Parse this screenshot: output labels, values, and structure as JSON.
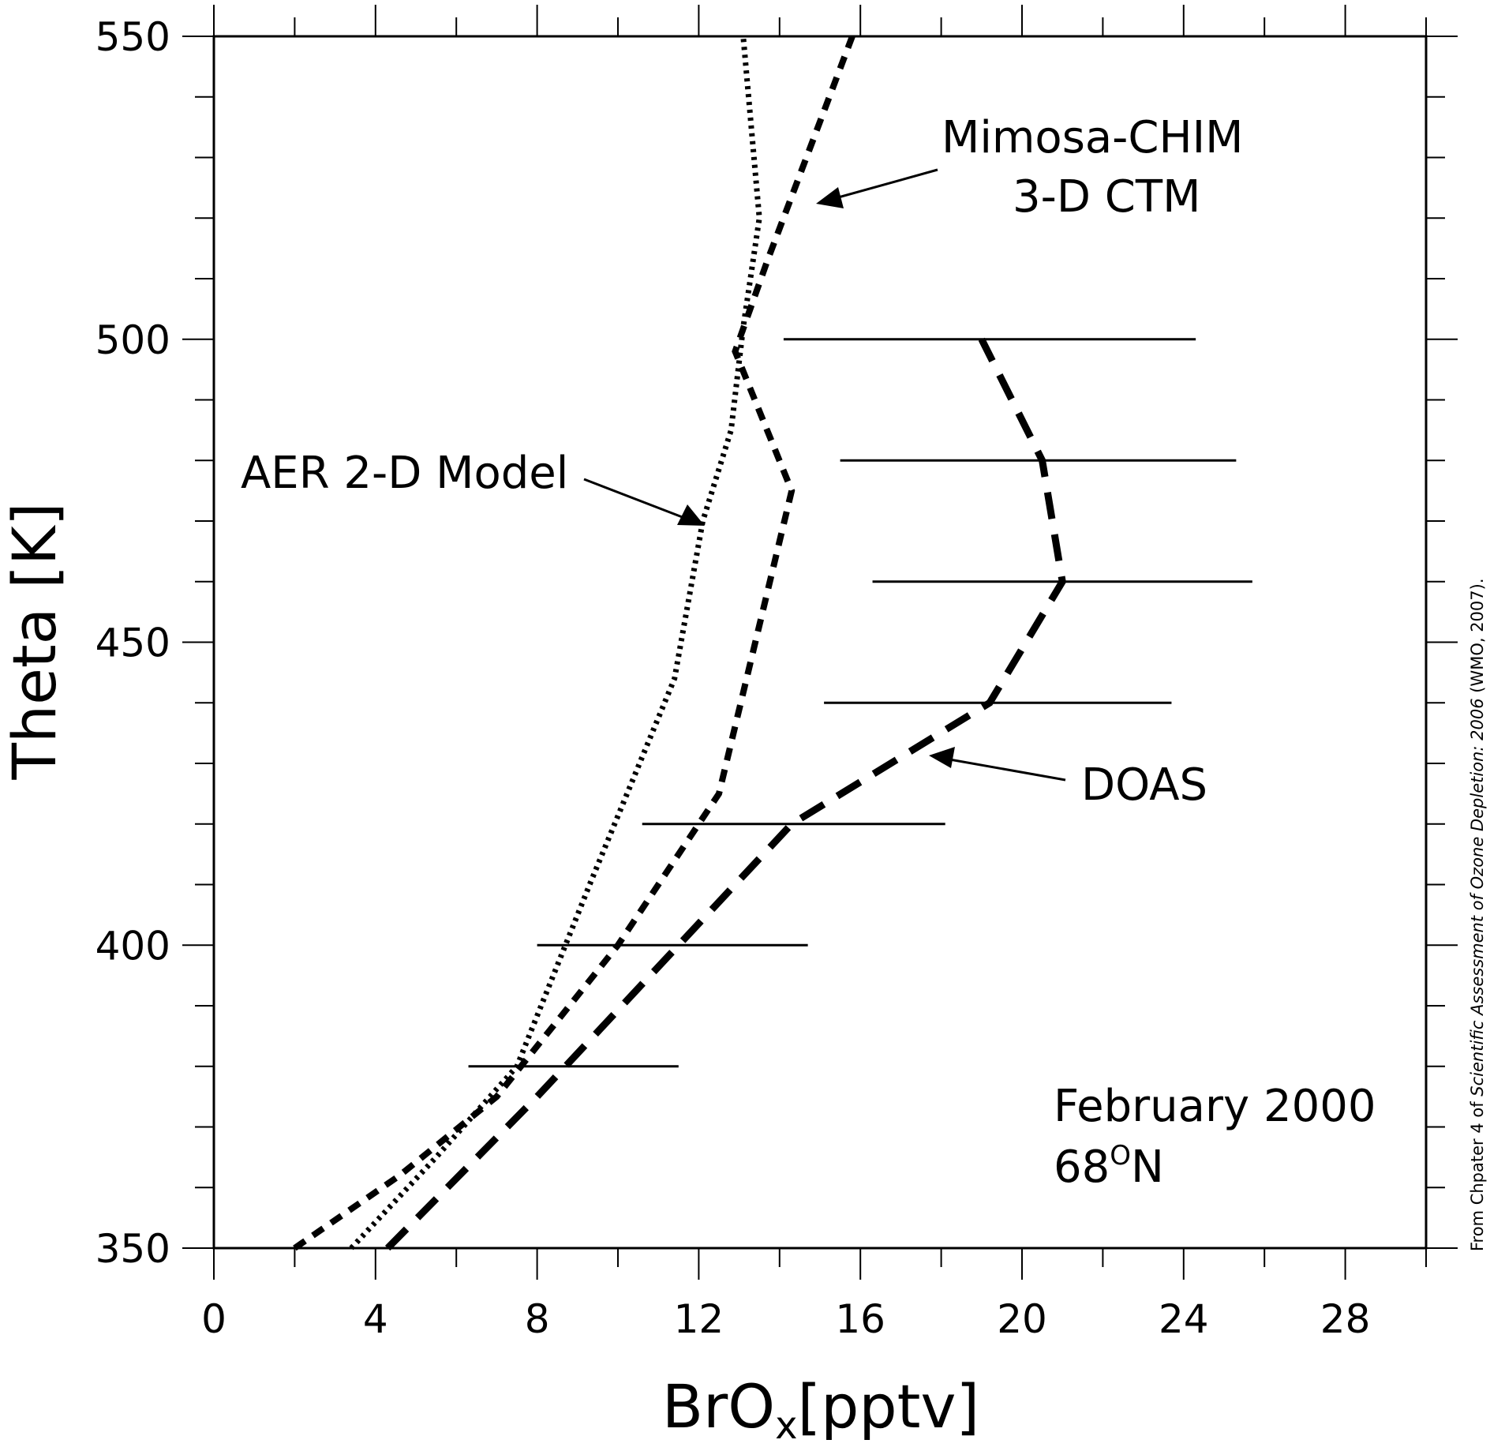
{
  "chart_data": {
    "type": "line",
    "xlabel_main": "BrO",
    "xlabel_sub": "x",
    "xlabel_unit": "[pptv]",
    "ylabel": "Theta [K]",
    "xlim": [
      0,
      30
    ],
    "ylim": [
      350,
      550
    ],
    "x_ticks": [
      0,
      4,
      8,
      12,
      16,
      20,
      24,
      28
    ],
    "y_ticks": [
      350,
      400,
      450,
      500,
      550
    ],
    "x_minor_step": 2,
    "y_minor_step": 10,
    "grid": false,
    "series": [
      {
        "name": "AER 2-D Model",
        "style": "dotted",
        "points": [
          [
            3.4,
            350
          ],
          [
            5.5,
            365
          ],
          [
            7.5,
            380
          ],
          [
            9.3,
            410
          ],
          [
            11.4,
            444
          ],
          [
            12.1,
            470
          ],
          [
            12.8,
            485
          ],
          [
            13.1,
            502
          ],
          [
            13.5,
            520
          ],
          [
            13.1,
            550
          ]
        ]
      },
      {
        "name": "Mimosa-CHIM 3-D CTM",
        "style": "dashed",
        "points": [
          [
            2.0,
            350
          ],
          [
            4.6,
            362
          ],
          [
            7.0,
            375
          ],
          [
            10.0,
            400
          ],
          [
            12.0,
            420
          ],
          [
            12.5,
            425
          ],
          [
            14.3,
            475
          ],
          [
            12.9,
            498
          ],
          [
            13.7,
            513
          ],
          [
            15.8,
            550
          ]
        ]
      },
      {
        "name": "DOAS",
        "style": "long-dashed",
        "points": [
          [
            4.3,
            350
          ],
          [
            8.0,
            375
          ],
          [
            11.5,
            400
          ],
          [
            14.3,
            420
          ],
          [
            19.2,
            440
          ],
          [
            21.0,
            460
          ],
          [
            20.5,
            480
          ],
          [
            19.0,
            500
          ]
        ],
        "error_bars": [
          {
            "y": 380,
            "x_low": 6.3,
            "x_high": 11.5
          },
          {
            "y": 400,
            "x_low": 8.0,
            "x_high": 14.7
          },
          {
            "y": 420,
            "x_low": 10.6,
            "x_high": 18.1
          },
          {
            "y": 440,
            "x_low": 15.1,
            "x_high": 23.7
          },
          {
            "y": 460,
            "x_low": 16.3,
            "x_high": 25.7
          },
          {
            "y": 480,
            "x_low": 15.5,
            "x_high": 25.3
          },
          {
            "y": 500,
            "x_low": 14.1,
            "x_high": 24.3
          }
        ]
      }
    ],
    "annotations": {
      "aer_label": "AER 2-D Model",
      "mimosa_label_1": "Mimosa-CHIM",
      "mimosa_label_2": "3-D CTM",
      "doas_label": "DOAS",
      "date_label": "February 2000",
      "lat_number": "68",
      "lat_sup": "O",
      "lat_suffix": "N"
    },
    "credit": {
      "prefix": "From Chpater 4 of ",
      "title": "Scientific Assessment of Ozone Depletion: 2006",
      "suffix": " (WMO, 2007)."
    }
  }
}
